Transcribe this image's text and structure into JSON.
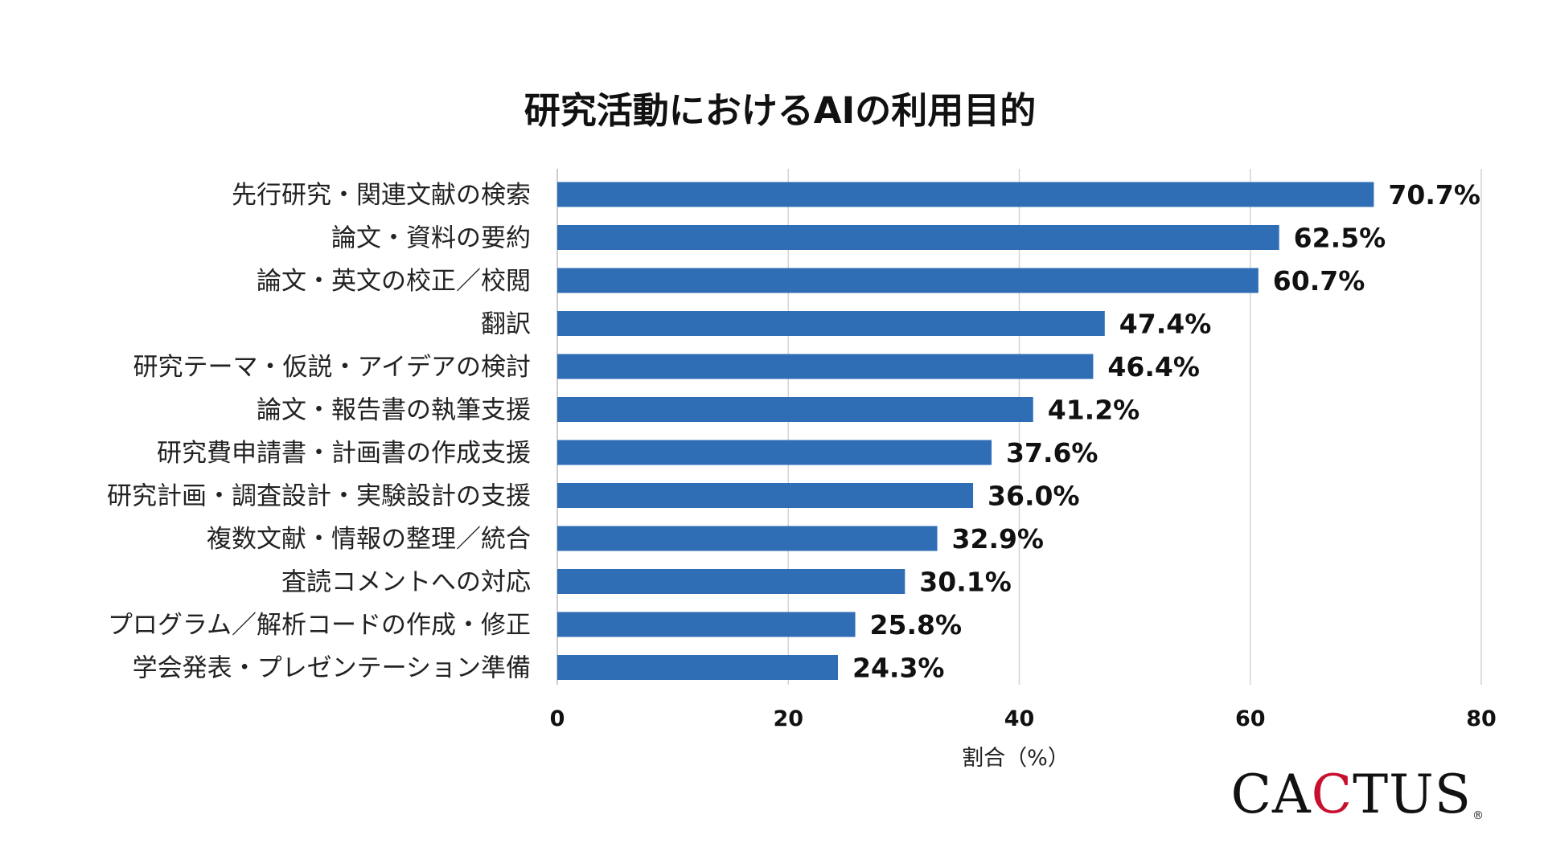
{
  "colors": {
    "bar": "#2f6db5",
    "grid": "#d4d4d4"
  },
  "logo": {
    "part1": "CA",
    "part2": "C",
    "part3": "TUS",
    "mark": "®",
    "accent": "#c8102e"
  },
  "chart_data": {
    "type": "bar",
    "orientation": "horizontal",
    "title": "研究活動におけるAIの利用目的",
    "xlabel": "割合（%）",
    "ylabel": "",
    "xlim": [
      0,
      80
    ],
    "xticks": [
      0,
      20,
      40,
      60,
      80
    ],
    "grid": true,
    "categories": [
      "先行研究・関連文献の検索",
      "論文・資料の要約",
      "論文・英文の校正／校閲",
      "翻訳",
      "研究テーマ・仮説・アイデアの検討",
      "論文・報告書の執筆支援",
      "研究費申請書・計画書の作成支援",
      "研究計画・調査設計・実験設計の支援",
      "複数文献・情報の整理／統合",
      "査読コメントへの対応",
      "プログラム／解析コードの作成・修正",
      "学会発表・プレゼンテーション準備"
    ],
    "values": [
      70.7,
      62.5,
      60.7,
      47.4,
      46.4,
      41.2,
      37.6,
      36.0,
      32.9,
      30.1,
      25.8,
      24.3
    ],
    "value_labels": [
      "70.7%",
      "62.5%",
      "60.7%",
      "47.4%",
      "46.4%",
      "41.2%",
      "37.6%",
      "36.0%",
      "32.9%",
      "30.1%",
      "25.8%",
      "24.3%"
    ]
  }
}
